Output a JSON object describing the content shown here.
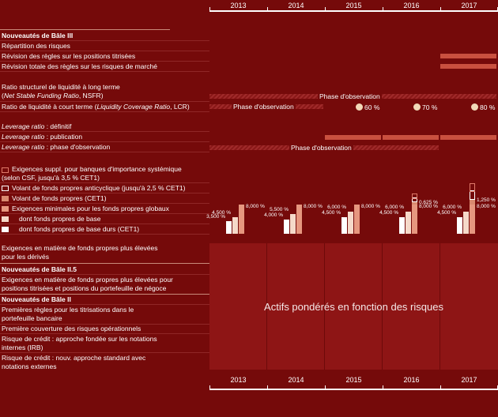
{
  "years": [
    "2013",
    "2014",
    "2015",
    "2016",
    "2017"
  ],
  "basel3": {
    "title": "Nouveautés de Bâle III",
    "rows": {
      "repartition": "Répartition des risques",
      "titrisees": "Révision des règles sur les positions titrisées",
      "marche": "Révision totale des règles sur les risques de marché",
      "nsfr_line1": "Ratio structurel de liquidité à long terme",
      "nsfr_line2a": "Net Stable Funding Ratio",
      "nsfr_line2b": ", NSFR)",
      "lcr_a": "Ratio de liquidité à court terme (",
      "lcr_b": "Liquidity Coverage Ratio",
      "lcr_c": ", LCR)",
      "lev_def_a": "Leverage ratio",
      "lev_def_b": " : définitif",
      "lev_pub_a": "Leverage ratio",
      "lev_pub_b": " : publication",
      "lev_obs_a": "Leverage ratio",
      "lev_obs_b": " : phase d'observation"
    },
    "phase_label": "Phase d'observation",
    "lcr_steps": [
      "60 %",
      "70 %",
      "80 %"
    ]
  },
  "legend": {
    "sib_1": "Exigences suppl. pour banques d'importance systémique",
    "sib_2": "(selon CSF, jusqu'à 3,5 % CET1)",
    "anticyclique": "Volant de fonds propres anticyclique (jusqu'à 2,5 % CET1)",
    "volant": "Volant de fonds propres (CET1)",
    "minimales": "Exigences minimales pour les fonds propres globaux",
    "base": "dont fonds propres de base",
    "durs": "dont fonds propres de base durs (CET1)"
  },
  "colors": {
    "sib": "#750a0a",
    "anticyclique": "#750a0a",
    "volant": "#d98a70",
    "minimales": "#e6977f",
    "base": "#f5d9c9",
    "durs": "#ffffff"
  },
  "chart_data": {
    "type": "bar",
    "categories": [
      "2013",
      "2014",
      "2015",
      "2016",
      "2017"
    ],
    "series": [
      {
        "name": "dont fonds propres de base durs (CET1)",
        "values": [
          3.5,
          4.0,
          4.5,
          4.5,
          4.5
        ]
      },
      {
        "name": "dont fonds propres de base",
        "values": [
          4.5,
          5.5,
          6.0,
          6.0,
          6.0
        ]
      },
      {
        "name": "Exigences minimales pour les fonds propres globaux",
        "values": [
          8.0,
          8.0,
          8.0,
          8.0,
          8.0
        ]
      },
      {
        "name": "Volant de fonds propres (CET1)",
        "values": [
          0,
          0,
          0,
          0.625,
          1.25
        ]
      }
    ],
    "labels": {
      "durs": [
        "3,500 %",
        "4,000 %",
        "4,500 %",
        "4,500 %",
        "4,500 %"
      ],
      "base": [
        "4,500 %",
        "5,500 %",
        "6,000 %",
        "6,000 %",
        "6,000 %"
      ],
      "minimales": [
        "8,000 %",
        "8,000 %",
        "8,000 %",
        "8,000 %",
        "8,000 %"
      ],
      "volant": [
        "",
        "",
        "",
        "0,625 %",
        "1,250 %"
      ]
    },
    "ylim": [
      0,
      14
    ]
  },
  "basel25": {
    "row_a1": "Exigences en matière de fonds propres plus élevées",
    "row_a2": "pour les dérivés",
    "title": "Nouveautés de Bâle II.5",
    "row_b1": "Exigences en matière de fonds propres plus élevées pour",
    "row_b2": "positions titrisées et positions du portefeuille de négoce"
  },
  "basel2": {
    "title": "Nouveautés de Bâle II",
    "r1a": "Premières règles pour les titrisations dans le",
    "r1b": "portefeuille bancaire",
    "r2": "Première couverture des risques opérationnels",
    "r3a": "Risque de crédit : approche fondée sur les notations",
    "r3b": "internes (IRB)",
    "r4a": "Risque de crédit : nouv. approche standard avec",
    "r4b": "notations externes"
  },
  "rwa_label": "Actifs pondérés en fonction des risques"
}
